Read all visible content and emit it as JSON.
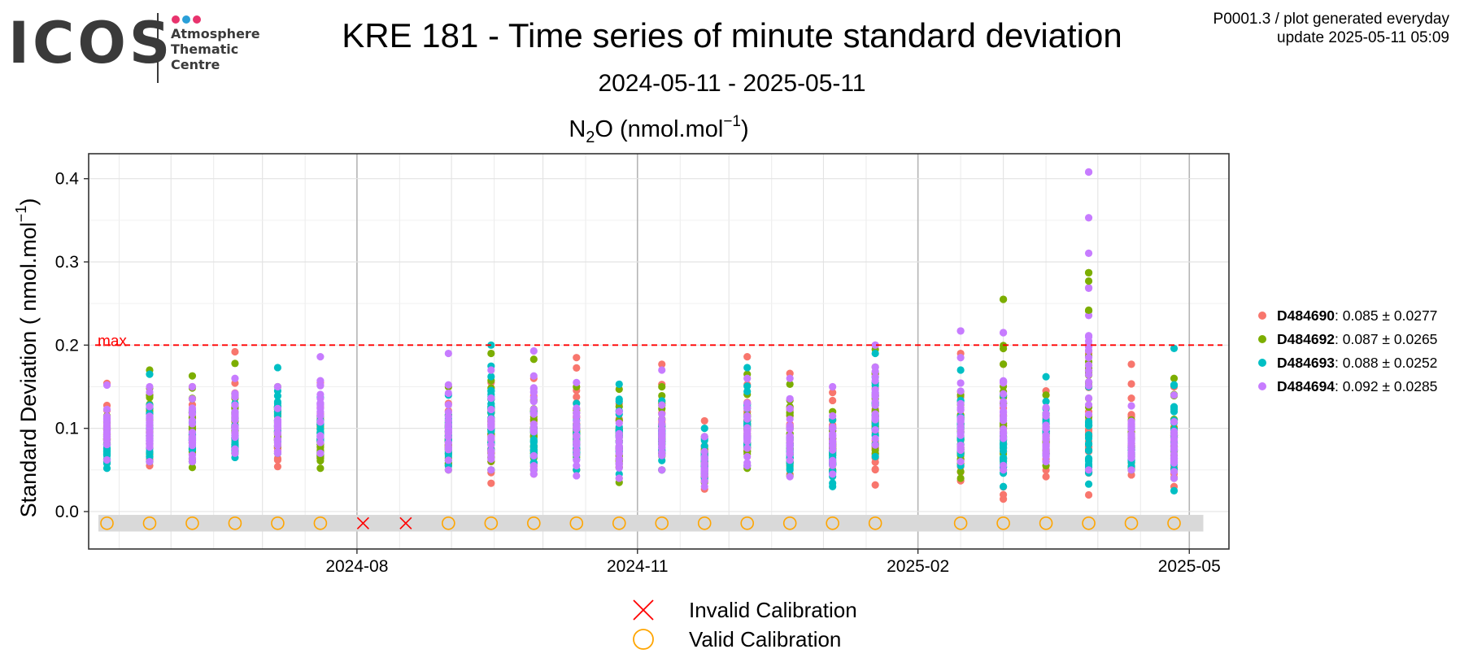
{
  "header": {
    "logo": {
      "word": "ICOS",
      "lines": [
        "Atmosphere",
        "Thematic",
        "Centre"
      ],
      "dot_colors": [
        "#e8336d",
        "#2a9fd8",
        "#e8336d"
      ]
    },
    "title": "KRE 181 - Time series of minute standard deviation",
    "subtitle": "2024-05-11 - 2025-05-11",
    "info_line1": "P0001.3 / plot generated everyday",
    "info_line2": "update  2025-05-11 05:09"
  },
  "chart_data": {
    "type": "scatter",
    "panel_title": {
      "species": "N",
      "species_sub": "2",
      "species_end": "O",
      "unit_open": " (nmol.mol",
      "unit_sup": "−1",
      "unit_close": ")"
    },
    "ylabel": {
      "main": "Standard Deviation ( nmol.mol",
      "sup": "−1",
      "close": ")"
    },
    "xlim": [
      "2024-05-05",
      "2025-05-14"
    ],
    "ylim": [
      -0.045,
      0.43
    ],
    "x_ticks": [
      {
        "date": "2024-08-01",
        "label": "2024-08"
      },
      {
        "date": "2024-11-01",
        "label": "2024-11"
      },
      {
        "date": "2025-02-01",
        "label": "2025-02"
      },
      {
        "date": "2025-05-01",
        "label": "2025-05"
      }
    ],
    "y_ticks": [
      0.0,
      0.1,
      0.2,
      0.3,
      0.4
    ],
    "y_tick_labels": [
      "0.0",
      "0.1",
      "0.2",
      "0.3",
      "0.4"
    ],
    "grid": true,
    "max_line": {
      "value": 0.2,
      "label": "max",
      "color": "#ff0000"
    },
    "series": [
      {
        "name": "D484690",
        "stats": "0.085 ± 0.0277",
        "color": "#f8766d"
      },
      {
        "name": "D484692",
        "stats": "0.087 ± 0.0265",
        "color": "#7cae00"
      },
      {
        "name": "D484693",
        "stats": "0.088 ± 0.0252",
        "color": "#00bfc4"
      },
      {
        "name": "D484694",
        "stats": "0.092 ± 0.0285",
        "color": "#c77cff"
      }
    ],
    "runs": [
      {
        "date": "2024-05-11",
        "cal": "valid",
        "ranges": [
          [
            0.06,
            0.154
          ],
          [
            0.07,
            0.115
          ],
          [
            0.052,
            0.1
          ],
          [
            0.062,
            0.152
          ]
        ]
      },
      {
        "date": "2024-05-25",
        "cal": "valid",
        "ranges": [
          [
            0.055,
            0.14
          ],
          [
            0.06,
            0.17
          ],
          [
            0.06,
            0.165
          ],
          [
            0.06,
            0.15
          ]
        ]
      },
      {
        "date": "2024-06-08",
        "cal": "valid",
        "ranges": [
          [
            0.06,
            0.15
          ],
          [
            0.053,
            0.163
          ],
          [
            0.06,
            0.12
          ],
          [
            0.06,
            0.15
          ]
        ]
      },
      {
        "date": "2024-06-22",
        "cal": "valid",
        "ranges": [
          [
            0.07,
            0.192
          ],
          [
            0.07,
            0.178
          ],
          [
            0.065,
            0.13
          ],
          [
            0.07,
            0.16
          ]
        ]
      },
      {
        "date": "2024-07-06",
        "cal": "valid",
        "ranges": [
          [
            0.054,
            0.12
          ],
          [
            0.07,
            0.15
          ],
          [
            0.07,
            0.173
          ],
          [
            0.07,
            0.15
          ]
        ]
      },
      {
        "date": "2024-07-20",
        "cal": "valid",
        "ranges": [
          [
            0.065,
            0.155
          ],
          [
            0.052,
            0.11
          ],
          [
            0.07,
            0.137
          ],
          [
            0.07,
            0.186
          ]
        ]
      },
      {
        "date": "2024-08-03",
        "cal": "invalid",
        "ranges": []
      },
      {
        "date": "2024-08-17",
        "cal": "invalid",
        "ranges": []
      },
      {
        "date": "2024-08-31",
        "cal": "valid",
        "ranges": [
          [
            0.055,
            0.13
          ],
          [
            0.05,
            0.15
          ],
          [
            0.055,
            0.14
          ],
          [
            0.05,
            0.19
          ]
        ]
      },
      {
        "date": "2024-09-14",
        "cal": "valid",
        "ranges": [
          [
            0.034,
            0.155
          ],
          [
            0.05,
            0.19
          ],
          [
            0.05,
            0.2
          ],
          [
            0.05,
            0.17
          ]
        ]
      },
      {
        "date": "2024-09-28",
        "cal": "valid",
        "ranges": [
          [
            0.045,
            0.16
          ],
          [
            0.05,
            0.183
          ],
          [
            0.05,
            0.12
          ],
          [
            0.045,
            0.193
          ]
        ]
      },
      {
        "date": "2024-10-12",
        "cal": "valid",
        "ranges": [
          [
            0.05,
            0.185
          ],
          [
            0.05,
            0.15
          ],
          [
            0.05,
            0.13
          ],
          [
            0.043,
            0.155
          ]
        ]
      },
      {
        "date": "2024-10-26",
        "cal": "valid",
        "ranges": [
          [
            0.04,
            0.13
          ],
          [
            0.035,
            0.147
          ],
          [
            0.045,
            0.153
          ],
          [
            0.04,
            0.12
          ]
        ]
      },
      {
        "date": "2024-11-09",
        "cal": "valid",
        "ranges": [
          [
            0.05,
            0.177
          ],
          [
            0.05,
            0.15
          ],
          [
            0.05,
            0.133
          ],
          [
            0.05,
            0.17
          ]
        ]
      },
      {
        "date": "2024-11-23",
        "cal": "valid",
        "ranges": [
          [
            0.027,
            0.109
          ],
          [
            0.035,
            0.09
          ],
          [
            0.04,
            0.1
          ],
          [
            0.03,
            0.09
          ]
        ]
      },
      {
        "date": "2024-12-07",
        "cal": "valid",
        "ranges": [
          [
            0.055,
            0.186
          ],
          [
            0.052,
            0.165
          ],
          [
            0.055,
            0.173
          ],
          [
            0.055,
            0.16
          ]
        ]
      },
      {
        "date": "2024-12-21",
        "cal": "valid",
        "ranges": [
          [
            0.045,
            0.166
          ],
          [
            0.043,
            0.153
          ],
          [
            0.05,
            0.1
          ],
          [
            0.042,
            0.16
          ]
        ]
      },
      {
        "date": "2025-01-04",
        "cal": "valid",
        "ranges": [
          [
            0.05,
            0.143
          ],
          [
            0.05,
            0.12
          ],
          [
            0.03,
            0.11
          ],
          [
            0.045,
            0.15
          ]
        ]
      },
      {
        "date": "2025-01-18",
        "cal": "valid",
        "ranges": [
          [
            0.032,
            0.2
          ],
          [
            0.07,
            0.195
          ],
          [
            0.066,
            0.19
          ],
          [
            0.08,
            0.2
          ]
        ]
      },
      {
        "date": "2025-02-15",
        "cal": "valid",
        "ranges": [
          [
            0.037,
            0.19
          ],
          [
            0.04,
            0.14
          ],
          [
            0.055,
            0.17
          ],
          [
            0.06,
            0.217
          ]
        ]
      },
      {
        "date": "2025-03-01",
        "cal": "valid",
        "ranges": [
          [
            0.015,
            0.177
          ],
          [
            0.05,
            0.255
          ],
          [
            0.03,
            0.14
          ],
          [
            0.05,
            0.215
          ]
        ]
      },
      {
        "date": "2025-03-15",
        "cal": "valid",
        "ranges": [
          [
            0.042,
            0.145
          ],
          [
            0.055,
            0.14
          ],
          [
            0.06,
            0.162
          ],
          [
            0.06,
            0.125
          ]
        ]
      },
      {
        "date": "2025-03-29",
        "cal": "valid",
        "ranges": [
          [
            0.02,
            0.19
          ],
          [
            0.05,
            0.287
          ],
          [
            0.033,
            0.15
          ],
          [
            0.05,
            0.408
          ]
        ]
      },
      {
        "date": "2025-04-12",
        "cal": "valid",
        "ranges": [
          [
            0.044,
            0.177
          ],
          [
            0.05,
            0.11
          ],
          [
            0.05,
            0.1
          ],
          [
            0.05,
            0.127
          ]
        ]
      },
      {
        "date": "2025-04-26",
        "cal": "valid",
        "ranges": [
          [
            0.03,
            0.15
          ],
          [
            0.04,
            0.16
          ],
          [
            0.025,
            0.196
          ],
          [
            0.04,
            0.14
          ]
        ]
      }
    ],
    "outliers": [
      {
        "date": "2025-03-29",
        "series": 3,
        "y": 0.408
      },
      {
        "date": "2025-03-29",
        "series": 3,
        "y": 0.353
      },
      {
        "date": "2025-03-29",
        "series": 1,
        "y": 0.287
      },
      {
        "date": "2025-03-29",
        "series": 1,
        "y": 0.277
      },
      {
        "date": "2025-03-29",
        "series": 1,
        "y": 0.242
      },
      {
        "date": "2025-03-01",
        "series": 1,
        "y": 0.255
      },
      {
        "date": "2025-02-15",
        "series": 3,
        "y": 0.217
      },
      {
        "date": "2025-03-01",
        "series": 3,
        "y": 0.215
      }
    ],
    "calibration_legend": [
      {
        "symbol": "cross",
        "label": "Invalid Calibration",
        "color": "#ff0000"
      },
      {
        "symbol": "circle",
        "label": "Valid Calibration",
        "color": "#ffa500"
      }
    ]
  }
}
